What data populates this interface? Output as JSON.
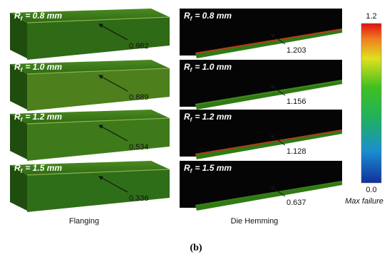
{
  "panels": {
    "flanging": {
      "caption": "Flanging",
      "items": [
        {
          "symbol": "R",
          "subscript": "f",
          "text": "= 0.8 mm",
          "value": 0.982
        },
        {
          "symbol": "R",
          "subscript": "f",
          "text": "= 1.0 mm",
          "value": 0.889
        },
        {
          "symbol": "R",
          "subscript": "f",
          "text": "= 1.2 mm",
          "value": 0.534
        },
        {
          "symbol": "R",
          "subscript": "f",
          "text": "= 1.5 mm",
          "value": 0.336
        }
      ]
    },
    "die_hemming": {
      "caption": "Die Hemming",
      "items": [
        {
          "symbol": "R",
          "subscript": "f",
          "text": "= 0.8 mm",
          "value": 1.203
        },
        {
          "symbol": "R",
          "subscript": "f",
          "text": "= 1.0 mm",
          "value": 1.156
        },
        {
          "symbol": "R",
          "subscript": "f",
          "text": "= 1.2 mm",
          "value": 1.128
        },
        {
          "symbol": "R",
          "subscript": "f",
          "text": "= 1.5 mm",
          "value": 0.637
        }
      ]
    }
  },
  "colorbar": {
    "max": 1.2,
    "min": {
      "value": 0,
      "label": "0.0"
    },
    "label": "Max failure"
  },
  "figure_label": "(b)"
}
